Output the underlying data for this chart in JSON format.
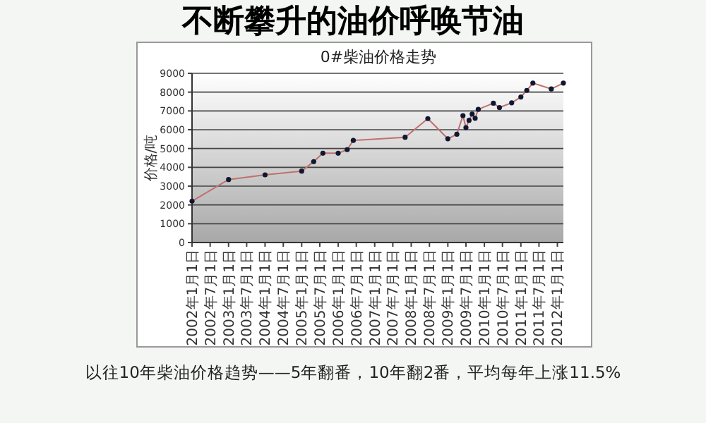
{
  "chart_data": {
    "type": "line",
    "title": "0#柴油价格走势",
    "subtitle": "不断攀升的油价呼唤节油",
    "ylabel": "价格/吨",
    "annotations": [
      "以往10年柴油价格趋势——5年翻番，10年翻2番，平均每年上涨11.5%"
    ],
    "x": [
      "2002-01-01",
      "2003-01-01",
      "2004-01-01",
      "2005-01-01",
      "2005-05-01",
      "2005-08-01",
      "2006-01-01",
      "2006-04-01",
      "2006-06-01",
      "2007-11-01",
      "2008-06-15",
      "2009-01-01",
      "2009-04-01",
      "2009-06-01",
      "2009-07-01",
      "2009-08-01",
      "2009-09-01",
      "2009-10-01",
      "2009-11-01",
      "2010-04-01",
      "2010-06-01",
      "2010-10-01",
      "2011-01-01",
      "2011-03-01",
      "2011-05-01",
      "2011-11-01",
      "2012-03-01"
    ],
    "series": [
      {
        "color": "#c07070",
        "values": [
          2200,
          3350,
          3600,
          3800,
          4300,
          4750,
          4750,
          4940,
          5430,
          5600,
          6590,
          5520,
          5760,
          6750,
          6110,
          6500,
          6830,
          6610,
          7080,
          7410,
          7180,
          7430,
          7740,
          8090,
          8480,
          8170,
          8480
        ]
      }
    ],
    "marker": "circle",
    "line_style": "solid",
    "grid": "y",
    "xlim": [
      "2002-01-01",
      "2012-03-01"
    ],
    "xticks": [
      {
        "value": "2002-01-01",
        "label": "2002年1月1日"
      },
      {
        "value": "2002-07-01",
        "label": "2002年7月1日"
      },
      {
        "value": "2003-01-01",
        "label": "2003年1月1日"
      },
      {
        "value": "2003-07-01",
        "label": "2003年7月1日"
      },
      {
        "value": "2004-01-01",
        "label": "2004年1月1日"
      },
      {
        "value": "2004-07-01",
        "label": "2004年7月1日"
      },
      {
        "value": "2005-01-01",
        "label": "2005年1月1日"
      },
      {
        "value": "2005-07-01",
        "label": "2005年7月1日"
      },
      {
        "value": "2006-01-01",
        "label": "2006年1月1日"
      },
      {
        "value": "2006-07-01",
        "label": "2006年7月1日"
      },
      {
        "value": "2007-01-01",
        "label": "2007年1月1日"
      },
      {
        "value": "2007-07-01",
        "label": "2007年7月1日"
      },
      {
        "value": "2008-01-01",
        "label": "2008年1月1日"
      },
      {
        "value": "2008-07-01",
        "label": "2008年7月1日"
      },
      {
        "value": "2009-01-01",
        "label": "2009年1月1日"
      },
      {
        "value": "2009-07-01",
        "label": "2009年7月1日"
      },
      {
        "value": "2010-01-01",
        "label": "2010年1月1日"
      },
      {
        "value": "2010-07-01",
        "label": "2010年7月1日"
      },
      {
        "value": "2011-01-01",
        "label": "2011年1月1日"
      },
      {
        "value": "2011-07-01",
        "label": "2011年7月1日"
      },
      {
        "value": "2012-01-01",
        "label": "2012年1月1日"
      }
    ],
    "ylim": [
      0,
      9000
    ],
    "yticks": [
      0,
      1000,
      2000,
      3000,
      4000,
      5000,
      6000,
      7000,
      8000,
      9000
    ]
  }
}
